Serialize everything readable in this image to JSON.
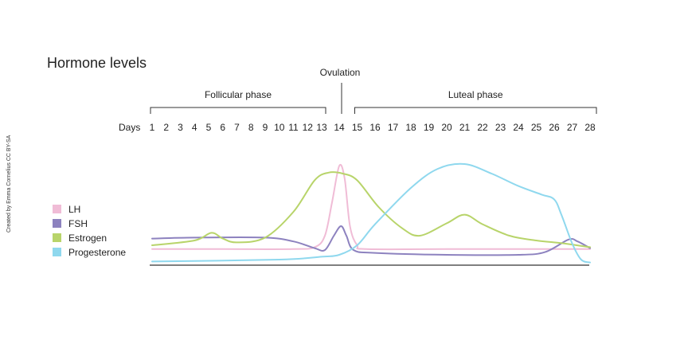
{
  "chart_data": {
    "type": "line",
    "title": "Hormone levels",
    "credit": "Created by Emma Cornelius CC BY-SA",
    "axis_label": "Days",
    "x": [
      1,
      2,
      3,
      4,
      5,
      6,
      7,
      8,
      9,
      10,
      11,
      12,
      13,
      14,
      15,
      16,
      17,
      18,
      19,
      20,
      21,
      22,
      23,
      24,
      25,
      26,
      27,
      28
    ],
    "phases": [
      {
        "label": "Follicular phase",
        "start_day": 1,
        "end_day": 13
      },
      {
        "label": "Luteal phase",
        "start_day": 15,
        "end_day": 28
      }
    ],
    "events": [
      {
        "label": "Ovulation",
        "day": 14
      }
    ],
    "legend_position": "left",
    "series": [
      {
        "name": "LH",
        "color": "#f0bcd6",
        "points": [
          [
            1,
            0.06
          ],
          [
            6,
            0.06
          ],
          [
            11,
            0.06
          ],
          [
            12.5,
            0.08
          ],
          [
            13.2,
            0.2
          ],
          [
            13.6,
            0.55
          ],
          [
            14.0,
            0.93
          ],
          [
            14.3,
            0.8
          ],
          [
            14.6,
            0.3
          ],
          [
            15,
            0.1
          ],
          [
            15.5,
            0.06
          ],
          [
            20,
            0.06
          ],
          [
            28,
            0.06
          ]
        ]
      },
      {
        "name": "FSH",
        "color": "#8d82bf",
        "points": [
          [
            1,
            0.17
          ],
          [
            4,
            0.18
          ],
          [
            9,
            0.18
          ],
          [
            11,
            0.14
          ],
          [
            12.5,
            0.07
          ],
          [
            13.2,
            0.05
          ],
          [
            13.7,
            0.2
          ],
          [
            14.1,
            0.3
          ],
          [
            14.4,
            0.2
          ],
          [
            14.8,
            0.05
          ],
          [
            16,
            0.02
          ],
          [
            20,
            0.0
          ],
          [
            24,
            0.0
          ],
          [
            25.5,
            0.03
          ],
          [
            26.8,
            0.16
          ],
          [
            27.3,
            0.14
          ],
          [
            28,
            0.07
          ]
        ]
      },
      {
        "name": "Estrogen",
        "color": "#b8d46a",
        "points": [
          [
            1,
            0.1
          ],
          [
            4,
            0.15
          ],
          [
            5.2,
            0.23
          ],
          [
            6,
            0.17
          ],
          [
            7,
            0.13
          ],
          [
            9,
            0.18
          ],
          [
            11,
            0.45
          ],
          [
            12.5,
            0.78
          ],
          [
            13.4,
            0.86
          ],
          [
            14.2,
            0.85
          ],
          [
            15,
            0.78
          ],
          [
            16.2,
            0.5
          ],
          [
            17.5,
            0.28
          ],
          [
            18.5,
            0.2
          ],
          [
            20,
            0.33
          ],
          [
            21,
            0.42
          ],
          [
            22,
            0.32
          ],
          [
            23.5,
            0.2
          ],
          [
            25,
            0.15
          ],
          [
            26.5,
            0.12
          ],
          [
            28,
            0.08
          ]
        ]
      },
      {
        "name": "Progesterone",
        "color": "#8fd8ee",
        "points": [
          [
            1,
            -0.07
          ],
          [
            10,
            -0.05
          ],
          [
            13,
            -0.02
          ],
          [
            14,
            0.0
          ],
          [
            15,
            0.1
          ],
          [
            16,
            0.32
          ],
          [
            18,
            0.7
          ],
          [
            19.5,
            0.9
          ],
          [
            21,
            0.95
          ],
          [
            22.5,
            0.85
          ],
          [
            24,
            0.72
          ],
          [
            25.3,
            0.63
          ],
          [
            26,
            0.58
          ],
          [
            26.4,
            0.42
          ],
          [
            27,
            0.12
          ],
          [
            27.5,
            -0.05
          ],
          [
            28,
            -0.08
          ]
        ]
      }
    ]
  }
}
